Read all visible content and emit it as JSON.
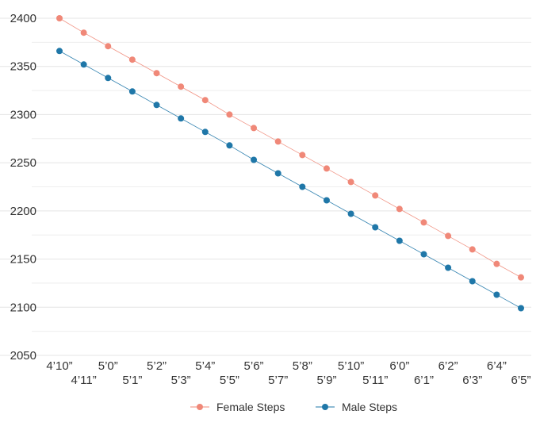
{
  "chart_data": {
    "type": "line",
    "title": "",
    "xlabel": "",
    "ylabel": "",
    "categories": [
      "4’10”",
      "4’11”",
      "5’0”",
      "5’1”",
      "5’2”",
      "5’3”",
      "5’4”",
      "5’5”",
      "5’6”",
      "5’7”",
      "5’8”",
      "5’9”",
      "5’10”",
      "5’11”",
      "6’0”",
      "6’1”",
      "6’2”",
      "6’3”",
      "6’4”",
      "6’5”"
    ],
    "yticks": [
      2050,
      2100,
      2150,
      2200,
      2250,
      2300,
      2350,
      2400
    ],
    "ylim": [
      2050,
      2400
    ],
    "grid": true,
    "legend_position": "bottom",
    "series": [
      {
        "name": "Female Steps",
        "color": "#f08878",
        "values": [
          2400,
          2385,
          2371,
          2357,
          2343,
          2329,
          2315,
          2300,
          2286,
          2272,
          2258,
          2244,
          2230,
          2216,
          2202,
          2188,
          2174,
          2160,
          2145,
          2131
        ]
      },
      {
        "name": "Male Steps",
        "color": "#1f77a8",
        "values": [
          2366,
          2352,
          2338,
          2324,
          2310,
          2296,
          2282,
          2268,
          2253,
          2239,
          2225,
          2211,
          2197,
          2183,
          2169,
          2155,
          2141,
          2127,
          2113,
          2099
        ]
      }
    ]
  }
}
